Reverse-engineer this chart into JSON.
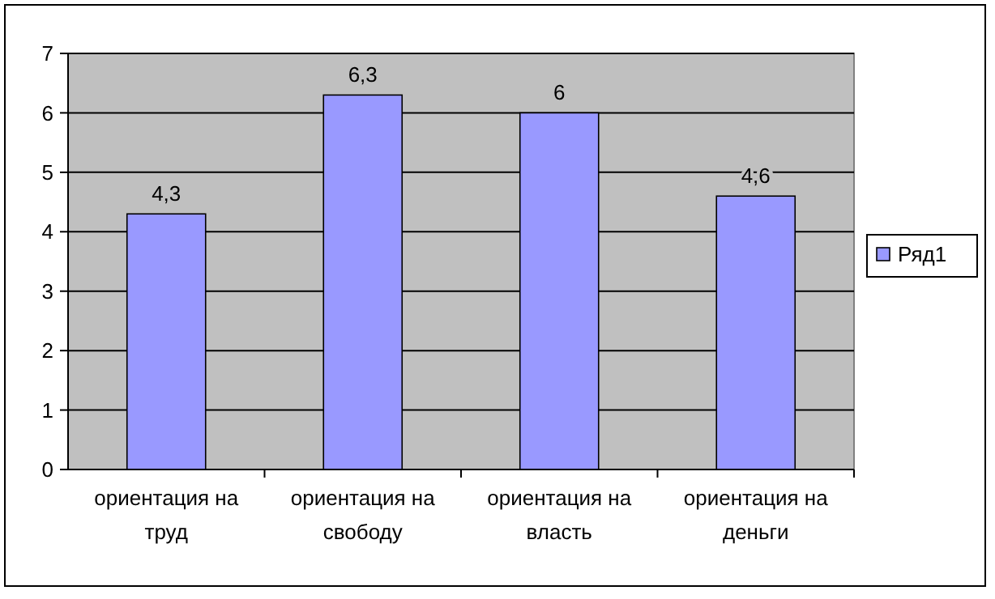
{
  "chart_data": {
    "type": "bar",
    "categories": [
      "ориентация на труд",
      "ориентация на свободу",
      "ориентация на власть",
      "ориентация на деньги"
    ],
    "series": [
      {
        "name": "Ряд1",
        "color": "#9999ff",
        "values": [
          4.3,
          6.3,
          6,
          4.6
        ],
        "value_labels": [
          "4,3",
          "6,3",
          "6",
          "4,6"
        ]
      }
    ],
    "ylim": [
      0,
      7
    ],
    "yticks": [
      0,
      1,
      2,
      3,
      4,
      5,
      6,
      7
    ],
    "grid": "y",
    "legend": "right"
  }
}
